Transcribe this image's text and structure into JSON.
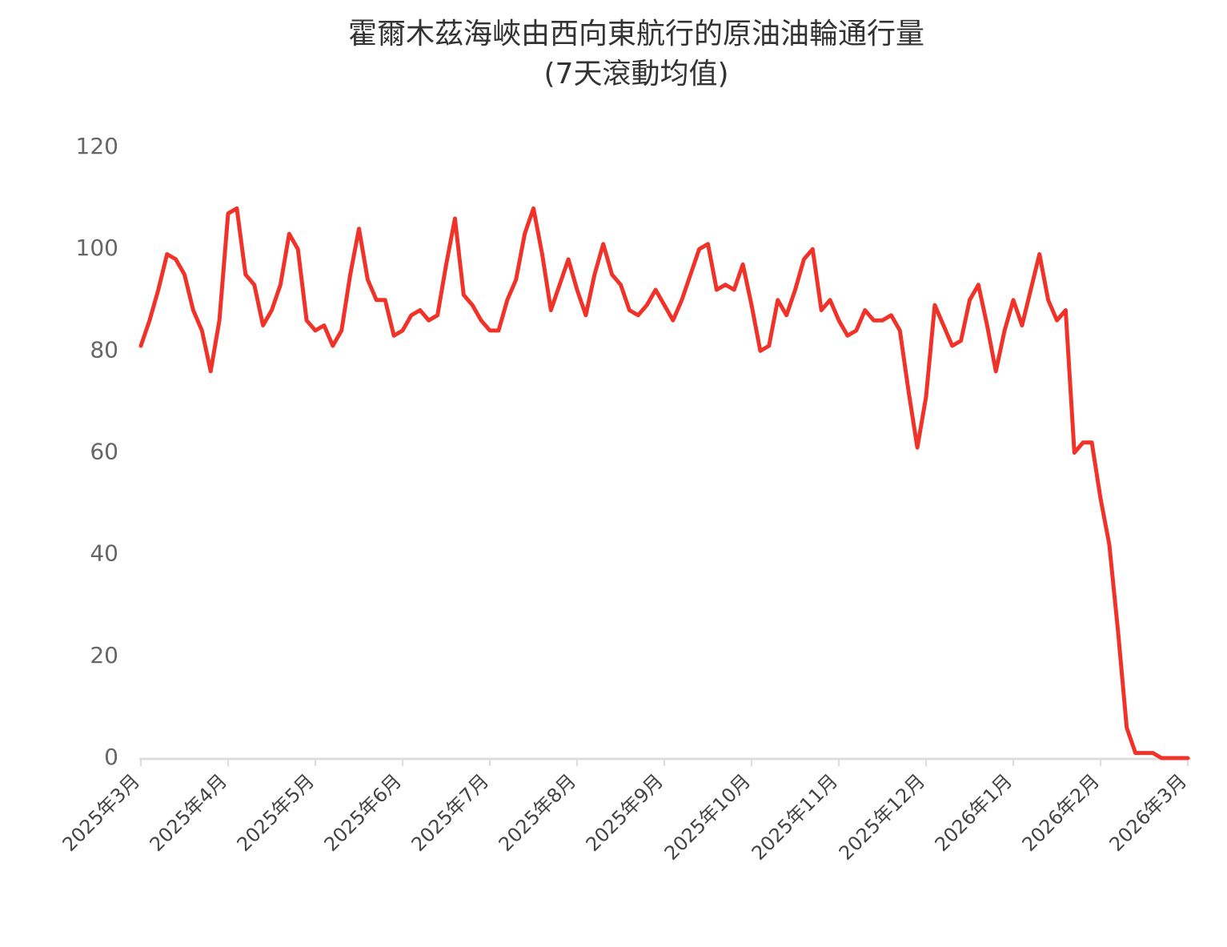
{
  "chart_data": {
    "type": "line",
    "title": "霍爾木茲海峽由西向東航行的原油油輪通行量",
    "subtitle": "(7天滾動均值)",
    "categories": [
      "2025年3月",
      null,
      null,
      null,
      null,
      null,
      null,
      null,
      null,
      null,
      "2025年4月",
      null,
      null,
      null,
      null,
      null,
      null,
      null,
      null,
      null,
      "2025年5月",
      null,
      null,
      null,
      null,
      null,
      null,
      null,
      null,
      null,
      "2025年6月",
      null,
      null,
      null,
      null,
      null,
      null,
      null,
      null,
      null,
      "2025年7月",
      null,
      null,
      null,
      null,
      null,
      null,
      null,
      null,
      null,
      "2025年8月",
      null,
      null,
      null,
      null,
      null,
      null,
      null,
      null,
      null,
      "2025年9月",
      null,
      null,
      null,
      null,
      null,
      null,
      null,
      null,
      null,
      "2025年10月",
      null,
      null,
      null,
      null,
      null,
      null,
      null,
      null,
      null,
      "2025年11月",
      null,
      null,
      null,
      null,
      null,
      null,
      null,
      null,
      null,
      "2025年12月",
      null,
      null,
      null,
      null,
      null,
      null,
      null,
      null,
      null,
      "2026年1月",
      null,
      null,
      null,
      null,
      null,
      null,
      null,
      null,
      null,
      "2026年2月",
      null,
      null,
      null,
      null,
      null,
      null,
      null,
      null,
      null,
      "2026年3月"
    ],
    "values": [
      81,
      86,
      92,
      99,
      98,
      95,
      88,
      84,
      76,
      86,
      107,
      108,
      95,
      93,
      85,
      88,
      93,
      103,
      100,
      86,
      84,
      85,
      81,
      84,
      95,
      104,
      94,
      90,
      90,
      83,
      84,
      87,
      88,
      86,
      87,
      97,
      106,
      91,
      89,
      86,
      84,
      84,
      90,
      94,
      103,
      108,
      99,
      88,
      93,
      98,
      92,
      87,
      95,
      101,
      95,
      93,
      88,
      87,
      89,
      92,
      89,
      86,
      90,
      95,
      100,
      101,
      92,
      93,
      92,
      97,
      89,
      80,
      81,
      90,
      87,
      92,
      98,
      100,
      88,
      90,
      86,
      83,
      84,
      88,
      86,
      86,
      87,
      84,
      72,
      61,
      71,
      89,
      85,
      81,
      82,
      90,
      93,
      85,
      76,
      84,
      90,
      85,
      92,
      99,
      90,
      86,
      88,
      60,
      62,
      62,
      51,
      42,
      25,
      6,
      1,
      1,
      1,
      0,
      0,
      0,
      0
    ],
    "color": "#f03228",
    "ylim": [
      0,
      120
    ],
    "yticks": [
      0,
      20,
      40,
      60,
      80,
      100,
      120
    ],
    "grid": false
  }
}
